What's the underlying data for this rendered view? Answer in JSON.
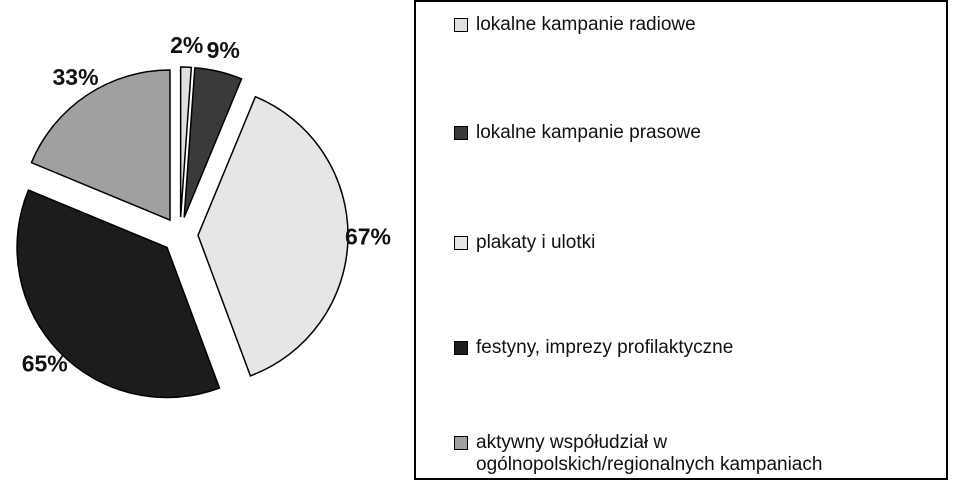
{
  "chart_data": {
    "type": "pie",
    "categories": [
      "lokalne kampanie radiowe",
      "lokalne kampanie prasowe",
      "plakaty i ulotki",
      "festyny, imprezy profilaktyczne",
      "aktywny współudział w ogólnopolskich/regionalnych kampaniach"
    ],
    "values": [
      2,
      9,
      67,
      65,
      33
    ],
    "value_labels": [
      "2%",
      "9%",
      "67%",
      "65%",
      "33%"
    ],
    "colors": [
      "#e0e0e0",
      "#3a3a3a",
      "#e6e6e6",
      "#1c1c1c",
      "#a0a0a0"
    ]
  }
}
